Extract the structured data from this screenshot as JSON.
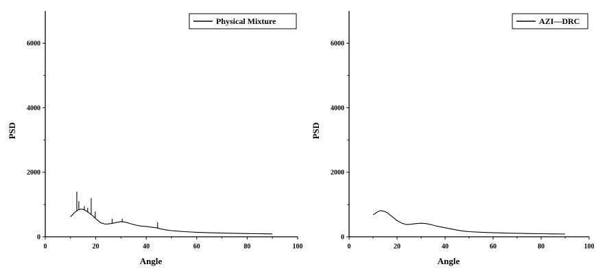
{
  "chart_data": [
    {
      "type": "line",
      "xlabel": "Angle",
      "ylabel": "PSD",
      "xlim": [
        0,
        100
      ],
      "ylim": [
        0,
        7000
      ],
      "xticks": [
        0,
        20,
        40,
        60,
        80,
        100
      ],
      "yticks": [
        0,
        2000,
        4000,
        6000
      ],
      "legend_position": "top-right",
      "grid": false,
      "series": [
        {
          "name": "Physical Mixture",
          "color": "#000000",
          "x": [
            10,
            11,
            12,
            13,
            14,
            15,
            16,
            17,
            18,
            19,
            20,
            22,
            24,
            26,
            28,
            30,
            32,
            34,
            36,
            38,
            40,
            42,
            44,
            46,
            48,
            50,
            55,
            60,
            65,
            70,
            75,
            80,
            85,
            90
          ],
          "y": [
            620,
            700,
            780,
            830,
            860,
            850,
            810,
            760,
            700,
            640,
            560,
            430,
            390,
            410,
            440,
            470,
            450,
            400,
            360,
            330,
            320,
            300,
            280,
            240,
            210,
            190,
            160,
            140,
            125,
            115,
            108,
            100,
            95,
            90
          ],
          "spikes": [
            {
              "x": 12.5,
              "y": 1400
            },
            {
              "x": 13.3,
              "y": 1100
            },
            {
              "x": 15.5,
              "y": 950
            },
            {
              "x": 16.8,
              "y": 900
            },
            {
              "x": 18.2,
              "y": 1200
            },
            {
              "x": 19.8,
              "y": 780
            },
            {
              "x": 26.5,
              "y": 560
            },
            {
              "x": 30.5,
              "y": 560
            },
            {
              "x": 44.5,
              "y": 450
            }
          ]
        }
      ]
    },
    {
      "type": "line",
      "xlabel": "Angle",
      "ylabel": "PSD",
      "xlim": [
        0,
        100
      ],
      "ylim": [
        0,
        7000
      ],
      "xticks": [
        0,
        20,
        40,
        60,
        80,
        100
      ],
      "yticks": [
        0,
        2000,
        4000,
        6000
      ],
      "legend_position": "top-right",
      "grid": false,
      "series": [
        {
          "name": "AZI—DRC",
          "color": "#000000",
          "x": [
            10,
            11,
            12,
            13,
            14,
            15,
            16,
            17,
            18,
            19,
            20,
            22,
            24,
            26,
            28,
            30,
            32,
            34,
            36,
            38,
            40,
            42,
            44,
            46,
            48,
            50,
            55,
            60,
            65,
            70,
            75,
            80,
            85,
            90
          ],
          "y": [
            680,
            730,
            780,
            810,
            800,
            780,
            740,
            680,
            620,
            560,
            500,
            420,
            380,
            390,
            410,
            420,
            410,
            380,
            340,
            310,
            280,
            250,
            220,
            195,
            175,
            160,
            140,
            125,
            115,
            108,
            100,
            95,
            90,
            85
          ],
          "spikes": []
        }
      ]
    }
  ]
}
